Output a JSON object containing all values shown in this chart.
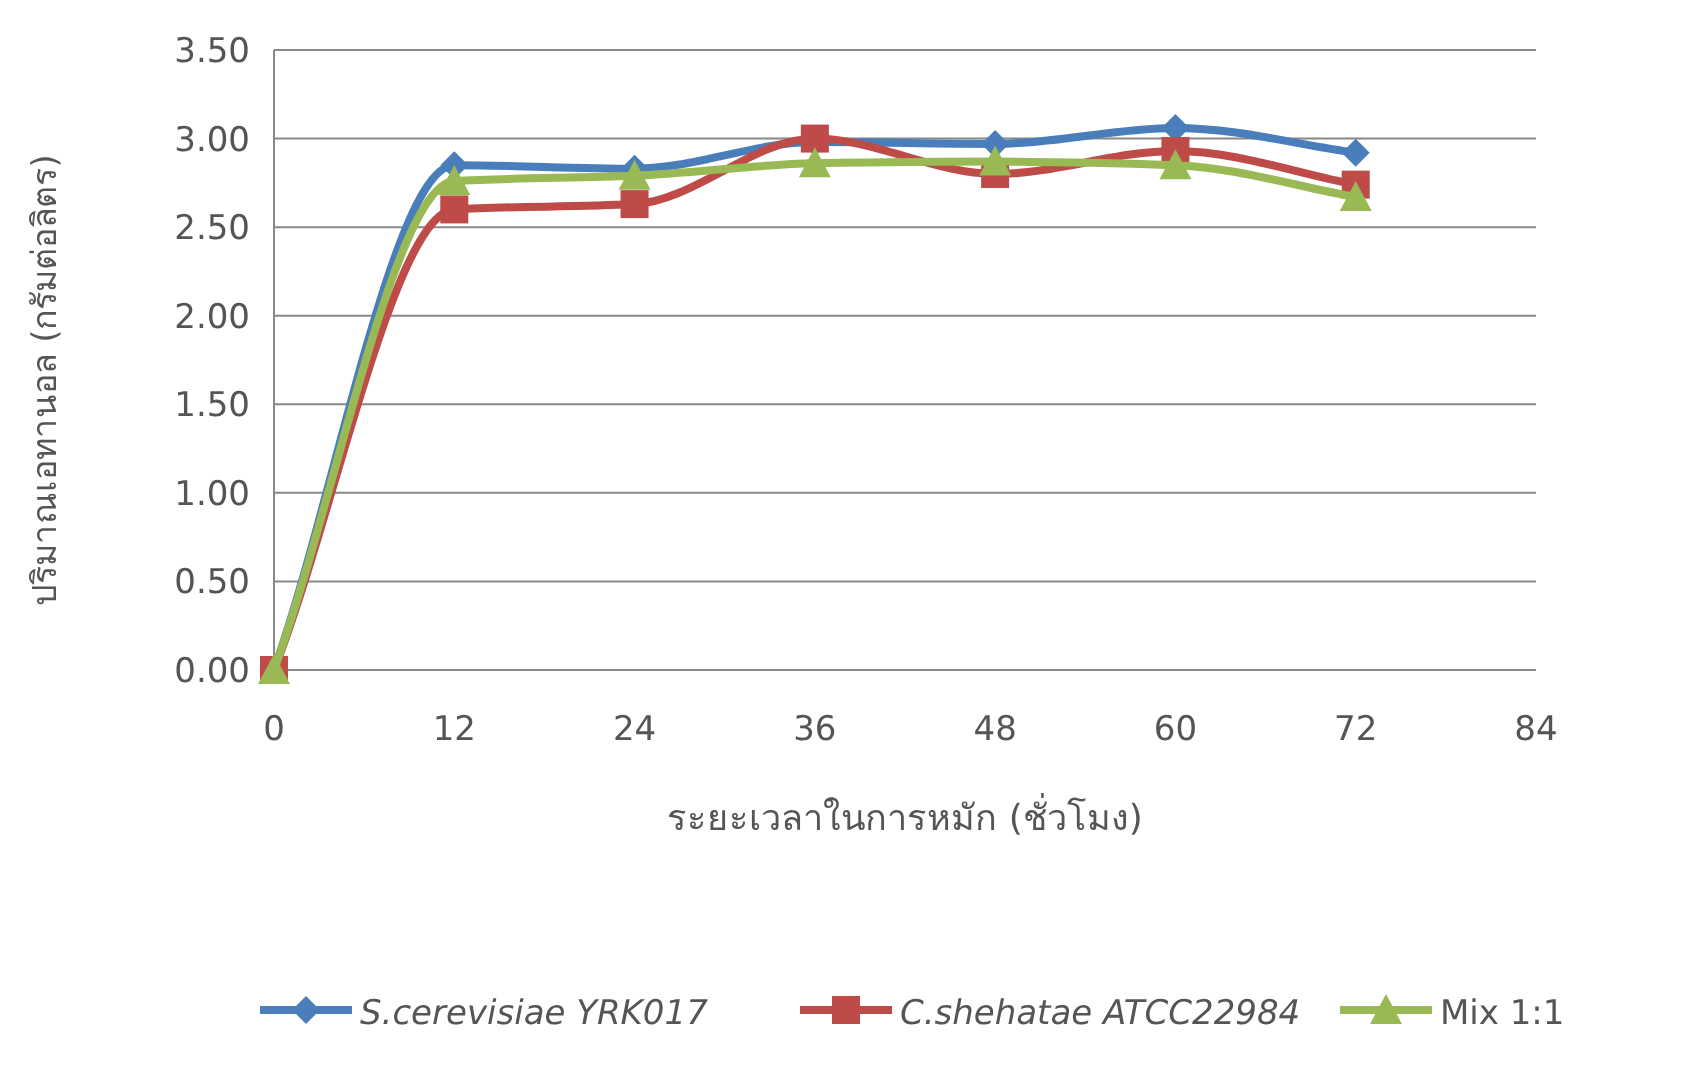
{
  "chart_data": {
    "type": "line",
    "xlabel": "ระยะเวลาในการหมัก (ชั่วโมง)",
    "ylabel": "ปริมาณเอทานอล (กรัมต่อลิตร)",
    "x": [
      0,
      12,
      24,
      36,
      48,
      60,
      72
    ],
    "series": [
      {
        "name": "*S.cerevisiae YRK017*",
        "color": "#4a7ebb",
        "marker": "diamond",
        "values": [
          0,
          2.85,
          2.83,
          2.98,
          2.97,
          3.06,
          2.92
        ]
      },
      {
        "name": "*C.shehatae ATCC22984*",
        "color": "#be4b48",
        "marker": "square",
        "values": [
          0,
          2.6,
          2.63,
          3.0,
          2.8,
          2.93,
          2.74
        ]
      },
      {
        "name": "Mix 1:1",
        "color": "#98b954",
        "marker": "triangle",
        "values": [
          0,
          2.76,
          2.79,
          2.86,
          2.87,
          2.85,
          2.67
        ]
      }
    ],
    "xlim": [
      0,
      84
    ],
    "xticks": [
      0,
      12,
      24,
      36,
      48,
      60,
      72,
      84
    ],
    "ylim": [
      0,
      3.5
    ],
    "yticks": [
      {
        "value": 0,
        "label": "0.00"
      },
      {
        "value": 0.5,
        "label": "0.50"
      },
      {
        "value": 1,
        "label": "1.00"
      },
      {
        "value": 1.5,
        "label": "1.50"
      },
      {
        "value": 2,
        "label": "2.00"
      },
      {
        "value": 2.5,
        "label": "2.50"
      },
      {
        "value": 3,
        "label": "3.00"
      },
      {
        "value": 3.5,
        "label": "3.50"
      }
    ],
    "grid": "y",
    "legend": "bottom",
    "line_style": "solid"
  }
}
